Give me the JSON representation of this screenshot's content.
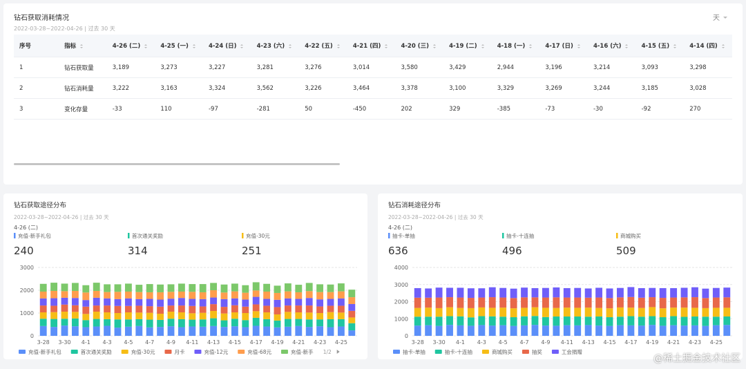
{
  "table_card": {
    "title": "钻石获取消耗情况",
    "subtitle": "2022-03-28~2022-04-26 | 过去 30 天",
    "granularity": "天",
    "columns": [
      "序号",
      "指标",
      "4-26 (二)",
      "4-25 (一)",
      "4-24 (日)",
      "4-23 (六)",
      "4-22 (五)",
      "4-21 (四)",
      "4-20 (三)",
      "4-19 (二)",
      "4-18 (一)",
      "4-17 (日)",
      "4-16 (六)",
      "4-15 (五)",
      "4-14 (四)"
    ],
    "rows": [
      [
        "1",
        "钻石获取量",
        "3,189",
        "3,273",
        "3,227",
        "3,281",
        "3,276",
        "3,014",
        "3,580",
        "3,429",
        "2,944",
        "3,196",
        "3,214",
        "3,093",
        "3,298"
      ],
      [
        "2",
        "钻石消耗量",
        "3,222",
        "3,163",
        "3,324",
        "3,562",
        "3,226",
        "3,464",
        "3,378",
        "3,100",
        "3,329",
        "3,269",
        "3,244",
        "3,185",
        "3,028"
      ],
      [
        "3",
        "变化存量",
        "-33",
        "110",
        "-97",
        "-281",
        "50",
        "-450",
        "202",
        "329",
        "-385",
        "-73",
        "-30",
        "-92",
        "270"
      ]
    ]
  },
  "chart_data": [
    {
      "type": "bar",
      "stacked": true,
      "title": "钻石获取途径分布",
      "subtitle": "2022-03-28~2022-04-26 | 过去 30 天",
      "kpi_label": "4-26 (二)",
      "kpis": [
        {
          "name": "充值-新手礼包",
          "value": 240
        },
        {
          "name": "首次通关奖励",
          "value": 314
        },
        {
          "name": "充值-30元",
          "value": 251
        }
      ],
      "categories": [
        "3-28",
        null,
        "3-30",
        null,
        "4-1",
        null,
        "4-3",
        null,
        "4-5",
        null,
        "4-7",
        null,
        "4-9",
        null,
        "4-11",
        null,
        "4-13",
        null,
        "4-15",
        null,
        "4-17",
        null,
        "4-19",
        null,
        "4-21",
        null,
        "4-23",
        null,
        "4-25",
        null
      ],
      "ylim": [
        0,
        3000
      ],
      "yticks": [
        0,
        1000,
        2000,
        3000
      ],
      "grid": true,
      "legend": "bottom",
      "legend_page": "1/2",
      "series": [
        {
          "name": "充值-新手礼包",
          "color": "#5b8ff9",
          "values": [
            430,
            390,
            450,
            420,
            380,
            410,
            440,
            360,
            400,
            430,
            370,
            390,
            420,
            380,
            410,
            400,
            430,
            390,
            420,
            380,
            440,
            410,
            370,
            400,
            430,
            390,
            420,
            380,
            410,
            240
          ]
        },
        {
          "name": "首次通关奖励",
          "color": "#1fc6a0",
          "values": [
            320,
            350,
            300,
            340,
            310,
            330,
            290,
            360,
            320,
            300,
            340,
            310,
            330,
            350,
            300,
            320,
            340,
            290,
            330,
            310,
            350,
            320,
            300,
            340,
            310,
            330,
            300,
            350,
            320,
            314
          ]
        },
        {
          "name": "充值-30元",
          "color": "#f6bd16",
          "values": [
            280,
            300,
            310,
            290,
            270,
            320,
            300,
            280,
            310,
            290,
            300,
            270,
            310,
            300,
            280,
            290,
            320,
            300,
            280,
            310,
            290,
            300,
            270,
            310,
            290,
            300,
            280,
            310,
            290,
            251
          ]
        },
        {
          "name": "月卡",
          "color": "#e8684a",
          "values": [
            300,
            280,
            310,
            290,
            320,
            270,
            300,
            310,
            280,
            300,
            290,
            310,
            270,
            300,
            320,
            280,
            300,
            290,
            310,
            280,
            300,
            290,
            320,
            280,
            300,
            310,
            290,
            280,
            300,
            290
          ]
        },
        {
          "name": "充值-12元",
          "color": "#6f5ef9",
          "values": [
            310,
            330,
            300,
            320,
            290,
            340,
            310,
            300,
            330,
            290,
            320,
            310,
            300,
            330,
            310,
            320,
            290,
            340,
            300,
            310,
            330,
            300,
            320,
            310,
            290,
            330,
            310,
            300,
            320,
            300
          ]
        },
        {
          "name": "充值-68元",
          "color": "#ff9d4d",
          "values": [
            300,
            320,
            290,
            310,
            330,
            300,
            280,
            320,
            300,
            310,
            290,
            320,
            300,
            280,
            310,
            300,
            320,
            290,
            310,
            300,
            280,
            320,
            300,
            310,
            290,
            300,
            320,
            300,
            310,
            300
          ]
        },
        {
          "name": "充值-新手",
          "color": "#7cc86a",
          "values": [
            340,
            360,
            330,
            350,
            320,
            360,
            340,
            330,
            350,
            320,
            360,
            340,
            330,
            350,
            340,
            360,
            320,
            350,
            340,
            330,
            360,
            340,
            320,
            350,
            330,
            360,
            340,
            330,
            350,
            330
          ]
        }
      ]
    },
    {
      "type": "bar",
      "stacked": true,
      "title": "钻石消耗途径分布",
      "subtitle": "2022-03-28~2022-04-26 | 过去 30 天",
      "kpi_label": "4-26 (二)",
      "kpis": [
        {
          "name": "抽卡-单抽",
          "value": 636
        },
        {
          "name": "抽卡-十连抽",
          "value": 496
        },
        {
          "name": "商城购买",
          "value": 509
        }
      ],
      "categories": [
        "3-28",
        null,
        "3-30",
        null,
        "4-1",
        null,
        "4-3",
        null,
        "4-5",
        null,
        "4-7",
        null,
        "4-9",
        null,
        "4-11",
        null,
        "4-13",
        null,
        "4-15",
        null,
        "4-17",
        null,
        "4-19",
        null,
        "4-21",
        null,
        "4-23",
        null,
        "4-25",
        null
      ],
      "ylim": [
        0,
        4000
      ],
      "yticks": [
        0,
        1000,
        2000,
        3000,
        4000
      ],
      "grid": true,
      "legend": "bottom",
      "series": [
        {
          "name": "抽卡-单抽",
          "color": "#5b8ff9",
          "values": [
            600,
            620,
            580,
            640,
            610,
            590,
            630,
            600,
            620,
            580,
            610,
            640,
            600,
            590,
            620,
            610,
            630,
            600,
            580,
            620,
            610,
            600,
            640,
            590,
            620,
            600,
            610,
            580,
            620,
            636
          ]
        },
        {
          "name": "抽卡-十连抽",
          "color": "#1fc6a0",
          "values": [
            520,
            500,
            540,
            510,
            530,
            490,
            520,
            540,
            500,
            510,
            530,
            520,
            500,
            540,
            510,
            520,
            490,
            530,
            510,
            500,
            540,
            520,
            510,
            500,
            530,
            510,
            520,
            540,
            500,
            496
          ]
        },
        {
          "name": "商城购买",
          "color": "#f6bd16",
          "values": [
            510,
            530,
            500,
            520,
            490,
            540,
            510,
            500,
            530,
            520,
            500,
            510,
            540,
            500,
            520,
            510,
            530,
            500,
            520,
            540,
            500,
            510,
            530,
            520,
            500,
            540,
            510,
            500,
            520,
            509
          ]
        },
        {
          "name": "抽奖",
          "color": "#e8684a",
          "values": [
            600,
            580,
            620,
            590,
            610,
            600,
            580,
            620,
            590,
            600,
            610,
            580,
            600,
            620,
            590,
            600,
            580,
            610,
            600,
            590,
            620,
            600,
            580,
            610,
            590,
            600,
            620,
            590,
            600,
            610
          ]
        },
        {
          "name": "工会捐赠",
          "color": "#6f5ef9",
          "values": [
            560,
            540,
            580,
            550,
            570,
            560,
            540,
            580,
            560,
            550,
            570,
            540,
            560,
            580,
            550,
            560,
            540,
            570,
            560,
            550,
            580,
            560,
            540,
            570,
            550,
            560,
            580,
            550,
            560,
            570
          ]
        }
      ]
    }
  ],
  "watermark": "@稀土掘金技术社区"
}
